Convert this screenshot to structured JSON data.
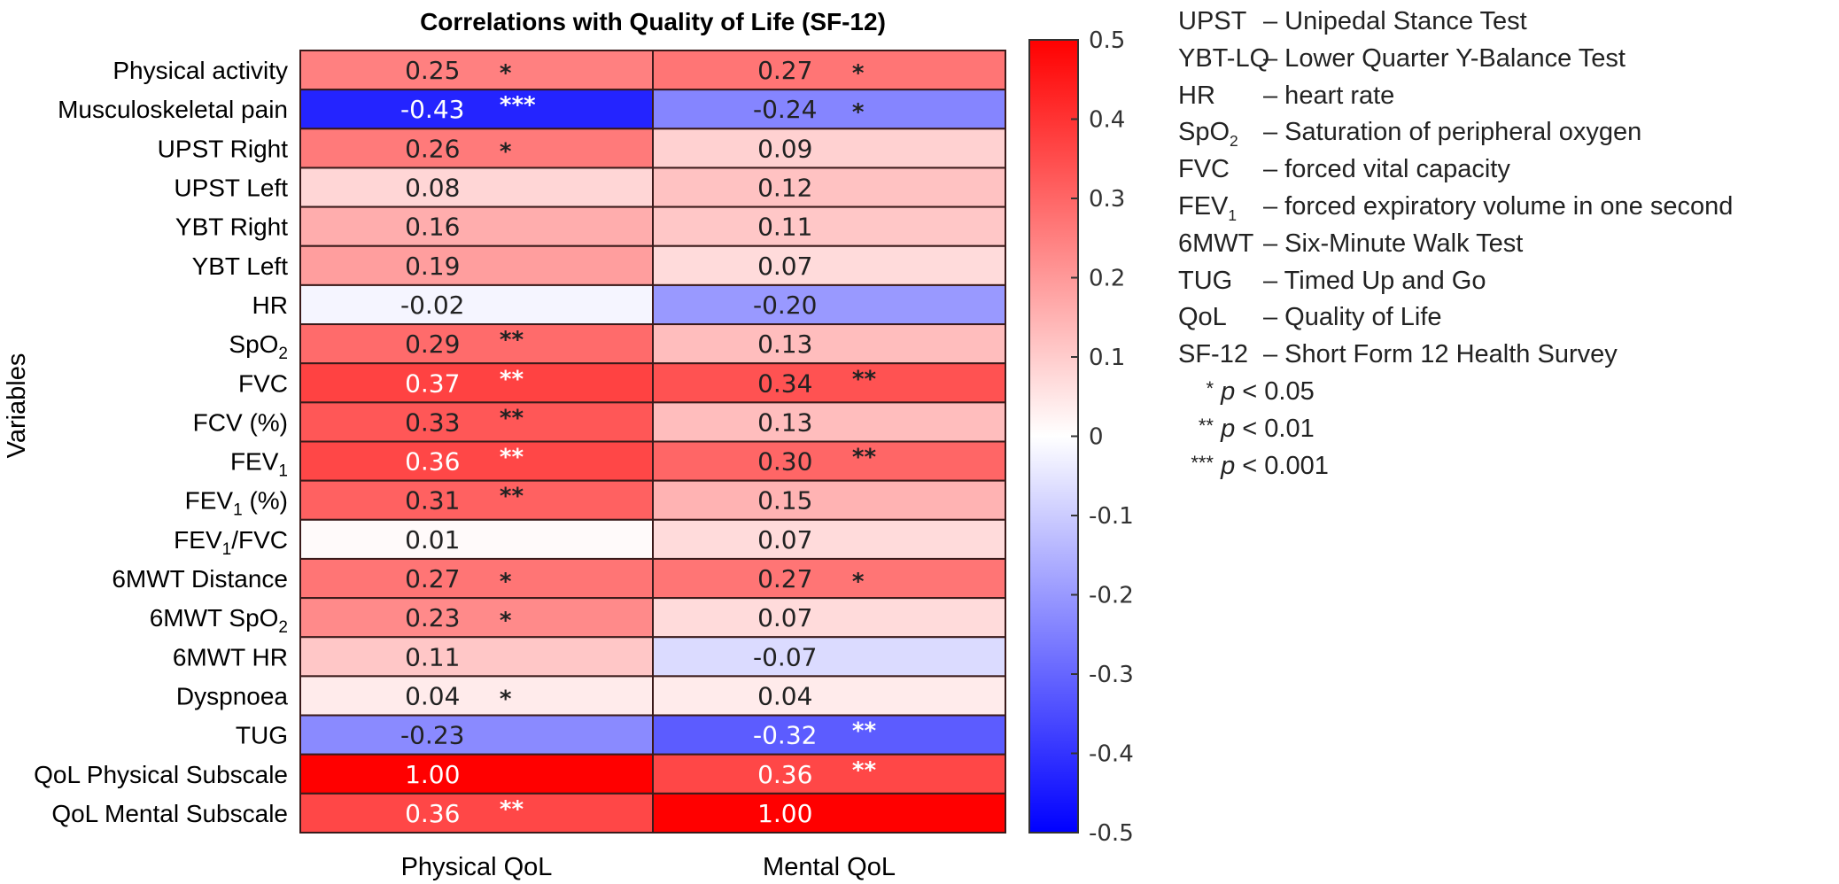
{
  "chart_data": {
    "type": "heatmap",
    "title": "Correlations with Quality of Life (SF-12)",
    "ylabel": "Variables",
    "xlabel": "",
    "columns": [
      "Physical QoL",
      "Mental QoL"
    ],
    "rows": [
      {
        "label": "Physical activity",
        "sub": "",
        "suffix": "",
        "values": [
          0.25,
          0.27
        ],
        "sig": [
          "*",
          "*"
        ]
      },
      {
        "label": "Musculoskeletal pain",
        "sub": "",
        "suffix": "",
        "values": [
          -0.43,
          -0.24
        ],
        "sig": [
          "***",
          "*"
        ]
      },
      {
        "label": "UPST Right",
        "sub": "",
        "suffix": "",
        "values": [
          0.26,
          0.09
        ],
        "sig": [
          "*",
          ""
        ]
      },
      {
        "label": "UPST Left",
        "sub": "",
        "suffix": "",
        "values": [
          0.08,
          0.12
        ],
        "sig": [
          "",
          ""
        ]
      },
      {
        "label": "YBT Right",
        "sub": "",
        "suffix": "",
        "values": [
          0.16,
          0.11
        ],
        "sig": [
          "",
          ""
        ]
      },
      {
        "label": "YBT Left",
        "sub": "",
        "suffix": "",
        "values": [
          0.19,
          0.07
        ],
        "sig": [
          "",
          ""
        ]
      },
      {
        "label": "HR",
        "sub": "",
        "suffix": "",
        "values": [
          -0.02,
          -0.2
        ],
        "sig": [
          "",
          ""
        ]
      },
      {
        "label": "SpO",
        "sub": "2",
        "suffix": "",
        "values": [
          0.29,
          0.13
        ],
        "sig": [
          "**",
          ""
        ]
      },
      {
        "label": "FVC",
        "sub": "",
        "suffix": "",
        "values": [
          0.37,
          0.34
        ],
        "sig": [
          "**",
          "**"
        ]
      },
      {
        "label": "FCV (%)",
        "sub": "",
        "suffix": "",
        "values": [
          0.33,
          0.13
        ],
        "sig": [
          "**",
          ""
        ]
      },
      {
        "label": "FEV",
        "sub": "1",
        "suffix": "",
        "values": [
          0.36,
          0.3
        ],
        "sig": [
          "**",
          "**"
        ]
      },
      {
        "label": "FEV",
        "sub": "1",
        "suffix": " (%)",
        "values": [
          0.31,
          0.15
        ],
        "sig": [
          "**",
          ""
        ]
      },
      {
        "label": "FEV",
        "sub": "1",
        "suffix": "/FVC",
        "values": [
          0.01,
          0.07
        ],
        "sig": [
          "",
          ""
        ]
      },
      {
        "label": "6MWT Distance",
        "sub": "",
        "suffix": "",
        "values": [
          0.27,
          0.27
        ],
        "sig": [
          "*",
          "*"
        ]
      },
      {
        "label": "6MWT SpO",
        "sub": "2",
        "suffix": "",
        "values": [
          0.23,
          0.07
        ],
        "sig": [
          "*",
          ""
        ]
      },
      {
        "label": "6MWT HR",
        "sub": "",
        "suffix": "",
        "values": [
          0.11,
          -0.07
        ],
        "sig": [
          "",
          ""
        ]
      },
      {
        "label": "Dyspnoea",
        "sub": "",
        "suffix": "",
        "values": [
          0.04,
          0.04
        ],
        "sig": [
          "*",
          ""
        ]
      },
      {
        "label": "TUG",
        "sub": "",
        "suffix": "",
        "values": [
          -0.23,
          -0.32
        ],
        "sig": [
          "",
          "**"
        ]
      },
      {
        "label": "QoL Physical Subscale",
        "sub": "",
        "suffix": "",
        "values": [
          1.0,
          0.36
        ],
        "sig": [
          "",
          "**"
        ]
      },
      {
        "label": "QoL Mental Subscale",
        "sub": "",
        "suffix": "",
        "values": [
          0.36,
          1.0
        ],
        "sig": [
          "**",
          ""
        ]
      }
    ],
    "colorbar": {
      "range": [
        -0.5,
        0.5
      ],
      "ticks": [
        "0.5",
        "0.4",
        "0.3",
        "0.2",
        "0.1",
        "0",
        "-0.1",
        "-0.2",
        "-0.3",
        "-0.4",
        "-0.5"
      ],
      "colormap": "bwr",
      "low_color": "#0000ff",
      "mid_color": "#ffffff",
      "high_color": "#ff0000"
    }
  },
  "legend": {
    "abbreviations": [
      {
        "abbr": "UPST",
        "sub": "",
        "desc": "– Unipedal Stance Test"
      },
      {
        "abbr": "YBT-LQ",
        "sub": "",
        "desc": "– Lower Quarter Y-Balance Test"
      },
      {
        "abbr": "HR",
        "sub": "",
        "desc": "– heart rate"
      },
      {
        "abbr": "SpO",
        "sub": "2",
        "desc": "– Saturation of peripheral oxygen"
      },
      {
        "abbr": "FVC",
        "sub": "",
        "desc": "– forced vital capacity"
      },
      {
        "abbr": "FEV",
        "sub": "1",
        "desc": "– forced expiratory volume in one second"
      },
      {
        "abbr": "6MWT",
        "sub": "",
        "desc": "– Six-Minute Walk Test"
      },
      {
        "abbr": "TUG",
        "sub": "",
        "desc": "– Timed Up and Go"
      },
      {
        "abbr": "QoL",
        "sub": "",
        "desc": "– Quality of Life"
      },
      {
        "abbr": "SF-12",
        "sub": "",
        "desc": "– Short Form 12 Health Survey"
      }
    ],
    "significance": [
      {
        "stars": "*",
        "p": "p",
        "text": " < 0.05"
      },
      {
        "stars": "**",
        "p": "p",
        "text": " < 0.01"
      },
      {
        "stars": "***",
        "p": "p",
        "text": " < 0.001"
      }
    ]
  }
}
